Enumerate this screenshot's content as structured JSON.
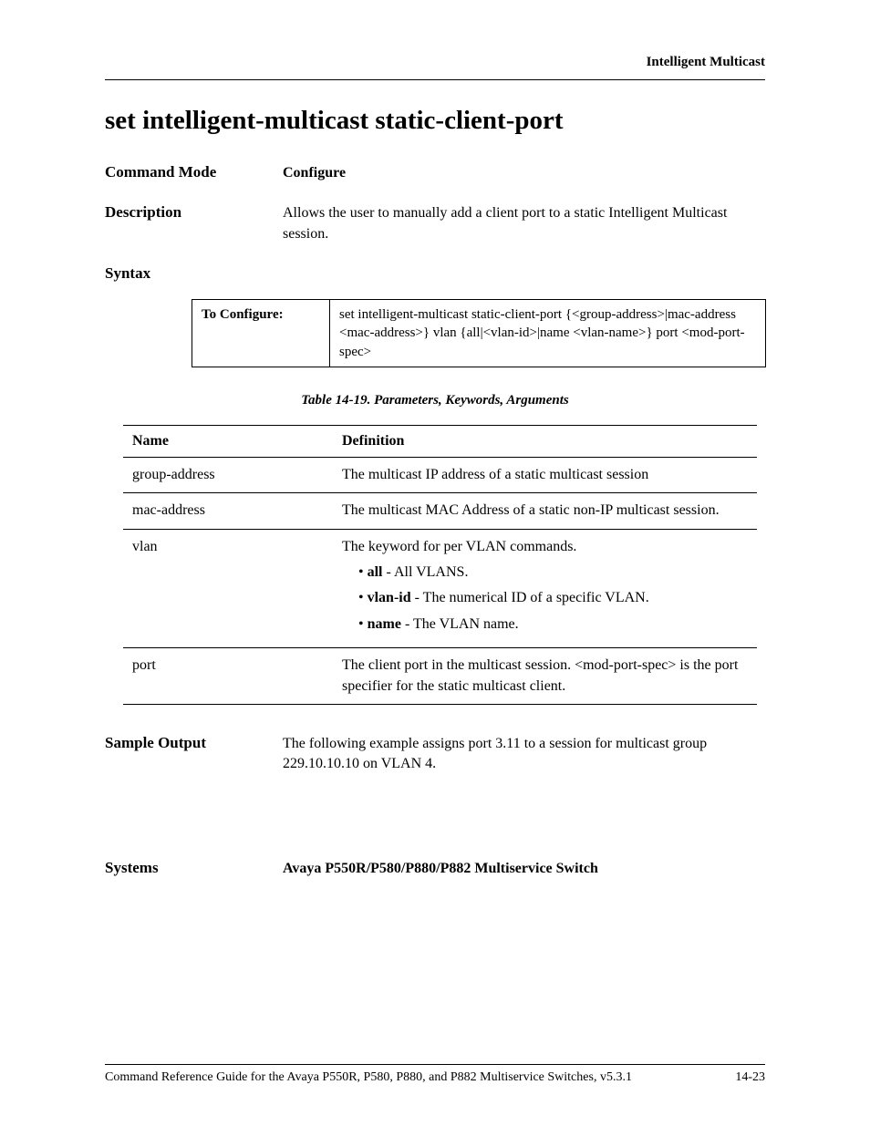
{
  "header": {
    "section_name": "Intelligent Multicast"
  },
  "title": "set intelligent-multicast static-client-port",
  "command_mode": {
    "label": "Command Mode",
    "value": "Configure"
  },
  "description": {
    "label": "Description",
    "value": "Allows the user to manually add a client port to a static Intelligent Multicast session."
  },
  "syntax": {
    "label": "Syntax",
    "table_label": "To Configure:",
    "table_value": "set intelligent-multicast static-client-port {<group-address>|mac-address <mac-address>} vlan {all|<vlan-id>|name <vlan-name>} port <mod-port-spec>"
  },
  "params_caption": "Table 14-19.  Parameters, Keywords, Arguments",
  "params_headers": {
    "name": "Name",
    "definition": "Definition"
  },
  "params_rows": [
    {
      "name": "group-address",
      "definition": "The multicast IP address of a static multicast session"
    },
    {
      "name": "mac-address",
      "definition": "The multicast MAC Address of a static non-IP multicast session."
    },
    {
      "name": "vlan",
      "definition": "The keyword for per VLAN commands.",
      "bullets": [
        {
          "bold": "all",
          "rest": " - All VLANS."
        },
        {
          "bold": "vlan-id",
          "rest": " - The numerical ID of a specific VLAN."
        },
        {
          "bold": "name",
          "rest": " - The VLAN name."
        }
      ]
    },
    {
      "name": "port",
      "definition": "The client port in the multicast session. <mod-port-spec> is the port specifier for the static multicast client."
    }
  ],
  "sample_output": {
    "label": "Sample Output",
    "value": "The following example assigns port 3.11 to a session for multicast group 229.10.10.10 on VLAN 4."
  },
  "systems": {
    "label": "Systems",
    "value": "Avaya P550R/P580/P880/P882 Multiservice Switch"
  },
  "footer": {
    "left": "Command Reference Guide for the Avaya P550R, P580, P880, and P882 Multiservice Switches, v5.3.1",
    "right": "14-23"
  }
}
